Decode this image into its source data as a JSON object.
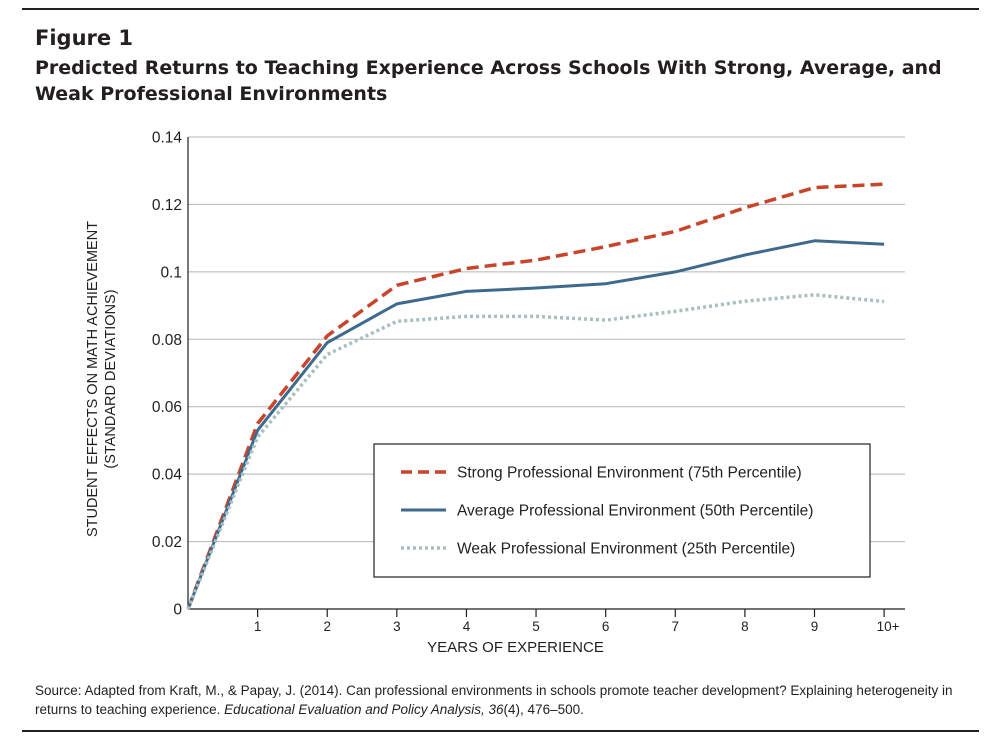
{
  "figure": {
    "label": "Figure 1",
    "title": "Predicted Returns to Teaching Experience Across Schools With Strong, Average, and Weak Professional Environments"
  },
  "source": {
    "prefix": "Source: Adapted from Kraft, M., & Papay, J. (2014). Can professional environments in schools promote teacher development? Explaining heterogeneity in returns to teaching experience. ",
    "journal": "Educational Evaluation and Policy Analysis, 36",
    "issue": "(4), 476–500."
  },
  "chart_data": {
    "type": "line",
    "xlabel": "YEARS OF EXPERIENCE",
    "ylabel_lines": [
      "STUDENT EFFECTS ON MATH ACHIEVEMENT",
      "(STANDARD DEVIATIONS)"
    ],
    "x": [
      0,
      1,
      2,
      3,
      4,
      5,
      6,
      7,
      8,
      9,
      10
    ],
    "x_tick_labels": [
      "",
      "1",
      "2",
      "3",
      "4",
      "5",
      "6",
      "7",
      "8",
      "9",
      "10+"
    ],
    "xlim": [
      0,
      10.3
    ],
    "ylim": [
      0,
      0.14
    ],
    "y_ticks": [
      0,
      0.02,
      0.04,
      0.06,
      0.08,
      0.1,
      0.12,
      0.14
    ],
    "y_tick_labels": [
      "0",
      "0.02",
      "0.04",
      "0.06",
      "0.08",
      "0.1",
      "0.12",
      "0.14"
    ],
    "grid": true,
    "legend_placement": "lower-right",
    "series": [
      {
        "name": "Strong Professional Environment (75th Percentile)",
        "values": [
          0,
          0.055,
          0.081,
          0.096,
          0.101,
          0.1035,
          0.1075,
          0.112,
          0.119,
          0.125,
          0.126
        ],
        "color": "#c8452c",
        "style": "dashed"
      },
      {
        "name": "Average Professional Environment (50th Percentile)",
        "values": [
          0,
          0.053,
          0.079,
          0.0905,
          0.0942,
          0.0952,
          0.0965,
          0.1,
          0.105,
          0.1092,
          0.1082
        ],
        "color": "#3e6a8e",
        "style": "solid"
      },
      {
        "name": "Weak Professional Environment (25th Percentile)",
        "values": [
          0,
          0.051,
          0.0755,
          0.0853,
          0.0868,
          0.0868,
          0.0857,
          0.0883,
          0.0913,
          0.0932,
          0.0912
        ],
        "color": "#a8bfbf",
        "style": "dotted"
      }
    ]
  }
}
